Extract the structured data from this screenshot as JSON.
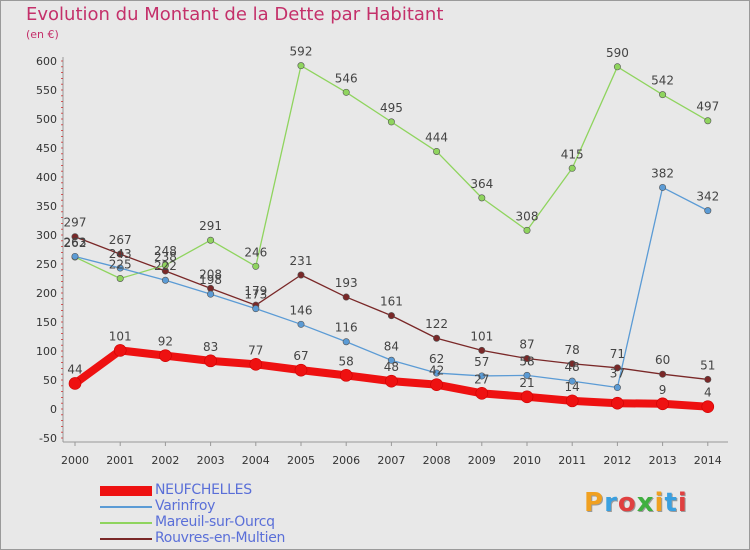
{
  "title": "Evolution du Montant de la Dette par Habitant",
  "unit": "(en €)",
  "logo": {
    "text": "Proxiti",
    "colors": [
      "#f0a020",
      "#3aa0e0",
      "#e04040",
      "#40b040",
      "#f0a020",
      "#3aa0e0",
      "#e04040"
    ]
  },
  "chart_data": {
    "type": "line",
    "x": [
      "2000",
      "2001",
      "2002",
      "2003",
      "2004",
      "2005",
      "2006",
      "2007",
      "2008",
      "2009",
      "2010",
      "2011",
      "2012",
      "2013",
      "2014"
    ],
    "ylim": [
      -50,
      600
    ],
    "yticks": [
      -50,
      0,
      50,
      100,
      150,
      200,
      250,
      300,
      350,
      400,
      450,
      500,
      550,
      600
    ],
    "grid": false,
    "legend_position": "bottom-left",
    "series": [
      {
        "name": "NEUFCHELLES",
        "color": "#ee1111",
        "values": [
          44,
          101,
          92,
          83,
          77,
          67,
          58,
          48,
          42,
          27,
          21,
          14,
          10,
          9,
          4
        ],
        "labels": [
          "44",
          "101",
          "92",
          "83",
          "77",
          "67",
          "58",
          "48",
          "42",
          "27",
          "21",
          "14",
          "",
          "9",
          "4"
        ]
      },
      {
        "name": "Varinfroy",
        "color": "#5b9bd5",
        "values": [
          263,
          243,
          222,
          198,
          173,
          146,
          116,
          84,
          62,
          57,
          58,
          48,
          37,
          382,
          342
        ],
        "labels": [
          "263",
          "243",
          "222",
          "198",
          "173",
          "146",
          "116",
          "84",
          "62",
          "57",
          "58",
          "48",
          "37",
          "382",
          "342"
        ]
      },
      {
        "name": "Mareuil-sur-Ourcq",
        "color": "#8fd45e",
        "values": [
          262,
          225,
          248,
          291,
          246,
          592,
          546,
          495,
          444,
          364,
          308,
          415,
          590,
          542,
          497
        ],
        "labels": [
          "262",
          "225",
          "248",
          "291",
          "246",
          "592",
          "546",
          "495",
          "444",
          "364",
          "308",
          "415",
          "590",
          "542",
          "497"
        ]
      },
      {
        "name": "Rouvres-en-Multien",
        "color": "#7a2828",
        "values": [
          297,
          267,
          238,
          208,
          179,
          231,
          193,
          161,
          122,
          101,
          87,
          78,
          71,
          60,
          51
        ],
        "labels": [
          "297",
          "267",
          "238",
          "208",
          "179",
          "231",
          "193",
          "161",
          "122",
          "101",
          "87",
          "78",
          "71",
          "60",
          "51"
        ]
      }
    ]
  }
}
